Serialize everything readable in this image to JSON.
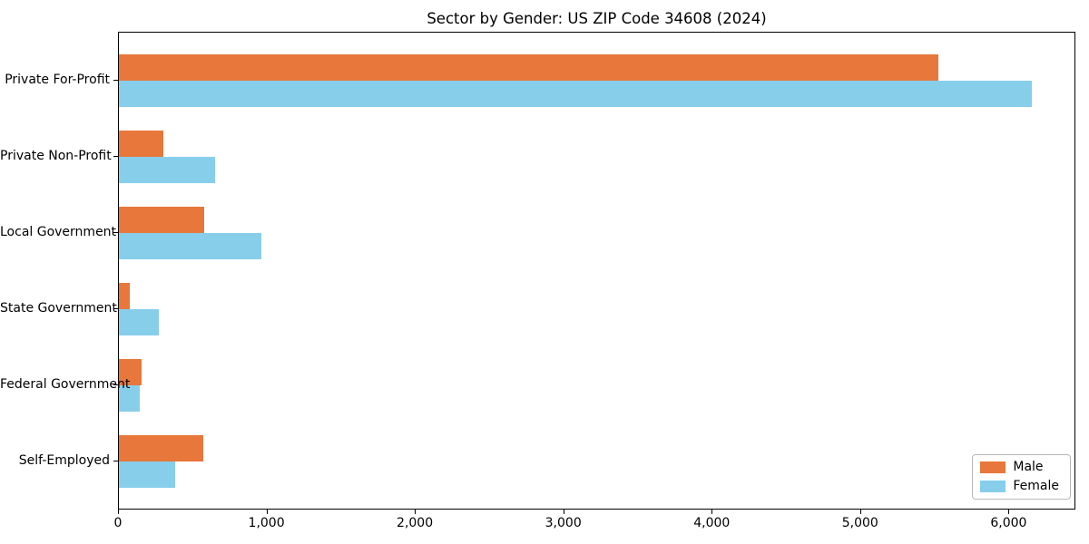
{
  "chart_data": {
    "type": "bar",
    "orientation": "horizontal",
    "title": "Sector by Gender: US ZIP Code 34608 (2024)",
    "xlabel": "",
    "ylabel": "",
    "categories": [
      "Private For-Profit",
      "Private Non-Profit",
      "Local Government",
      "State Government",
      "Federal Government",
      "Self-Employed"
    ],
    "series": [
      {
        "name": "Male",
        "color": "#e8773b",
        "values": [
          5520,
          300,
          575,
          75,
          150,
          570
        ]
      },
      {
        "name": "Female",
        "color": "#87ceeb",
        "values": [
          6150,
          650,
          960,
          270,
          140,
          380
        ]
      }
    ],
    "xlim": [
      0,
      6450
    ],
    "x_ticks": [
      {
        "value": 0,
        "label": "0"
      },
      {
        "value": 1000,
        "label": "1,000"
      },
      {
        "value": 2000,
        "label": "2,000"
      },
      {
        "value": 3000,
        "label": "3,000"
      },
      {
        "value": 4000,
        "label": "4,000"
      },
      {
        "value": 5000,
        "label": "5,000"
      },
      {
        "value": 6000,
        "label": "6,000"
      }
    ],
    "grid": false,
    "legend_position": "lower right"
  }
}
